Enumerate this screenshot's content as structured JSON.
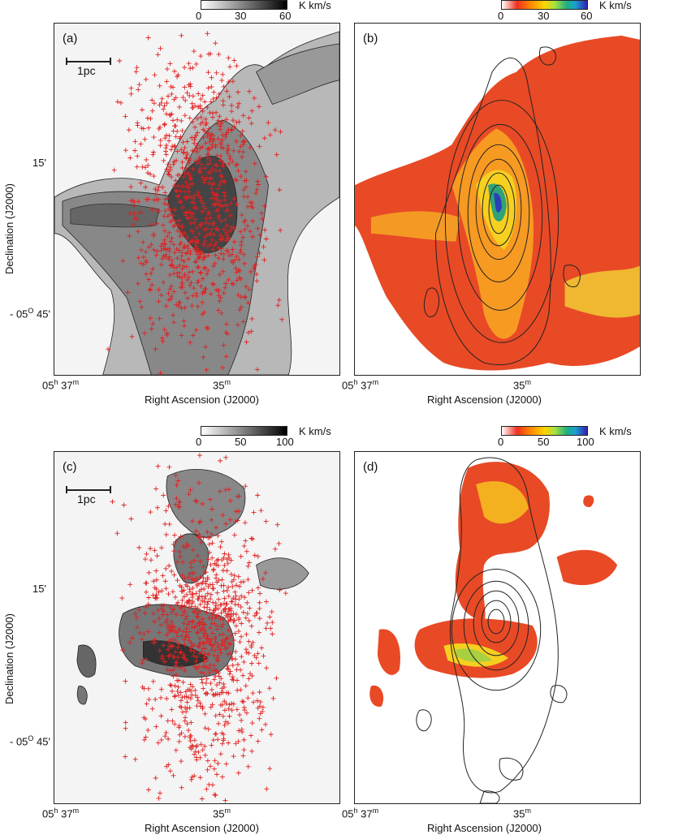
{
  "panels": [
    {
      "label": "(a)",
      "scalebar": "1pc"
    },
    {
      "label": "(b)",
      "scalebar": ""
    },
    {
      "label": "(c)",
      "scalebar": "1pc"
    },
    {
      "label": "(d)",
      "scalebar": ""
    }
  ],
  "colorbars": {
    "top": {
      "ticks": [
        "0",
        "30",
        "60"
      ],
      "unit": "K km/s"
    },
    "bottom": {
      "ticks": [
        "0",
        "50",
        "100"
      ],
      "unit": "K km/s"
    }
  },
  "axes": {
    "xlabel": "Right Ascension (J2000)",
    "ylabel": "Declination (J2000)",
    "x_ticks": [
      {
        "h": "05",
        "hunit": "h",
        "m": "37",
        "munit": "m"
      },
      {
        "m": "35",
        "munit": "m"
      }
    ],
    "y_ticks": [
      "15'",
      "- 05",
      "O",
      " 45'"
    ]
  },
  "colors": {
    "marker": "#e02020",
    "contour": "#222222"
  },
  "icons": [
    "plus-marker",
    "contour-line"
  ]
}
